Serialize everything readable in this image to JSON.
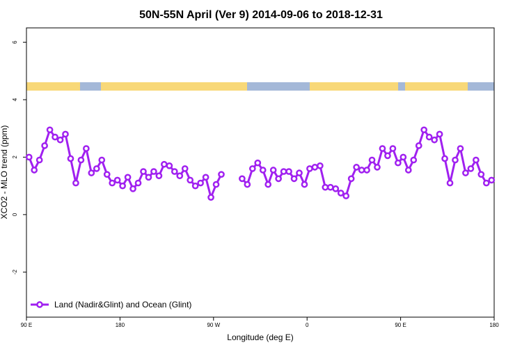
{
  "chart_data": {
    "type": "line",
    "title": "50N-55N April (Ver 9)   2014-09-06 to 2018-12-31",
    "x_label": "Longitude (deg E)",
    "y_label": "XCO2 - MLO trend (ppm)",
    "x": [
      92.5,
      97.5,
      102.5,
      107.5,
      112.5,
      117.5,
      122.5,
      127.5,
      132.5,
      137.5,
      142.5,
      147.5,
      152.5,
      157.5,
      162.5,
      167.5,
      172.5,
      177.5,
      182.5,
      187.5,
      192.5,
      197.5,
      202.5,
      207.5,
      212.5,
      217.5,
      222.5,
      227.5,
      232.5,
      237.5,
      242.5,
      247.5,
      252.5,
      257.5,
      262.5,
      267.5,
      272.5,
      277.5,
      282.5,
      287.5,
      292.5,
      297.5,
      302.5,
      307.5,
      312.5,
      317.5,
      322.5,
      327.5,
      332.5,
      337.5,
      342.5,
      347.5,
      352.5,
      357.5,
      362.5,
      367.5,
      372.5,
      377.5,
      382.5,
      387.5,
      392.5,
      397.5,
      402.5,
      407.5,
      412.5,
      417.5,
      422.5,
      427.5,
      432.5,
      437.5,
      442.5,
      447.5,
      452.5,
      457.5,
      462.5,
      467.5,
      472.5,
      477.5,
      482.5,
      487.5,
      492.5,
      497.5,
      502.5,
      507.5,
      512.5,
      517.5,
      522.5,
      527.5,
      532.5,
      537.5
    ],
    "series": [
      {
        "name": "Land (Nadir&Glint) and Ocean (Glint)",
        "color": "#a020f0",
        "values": [
          2.0,
          1.55,
          1.9,
          2.4,
          2.95,
          2.7,
          2.6,
          2.8,
          1.95,
          1.1,
          1.9,
          2.3,
          1.45,
          1.6,
          1.9,
          1.4,
          1.1,
          1.2,
          1.0,
          1.3,
          0.9,
          1.1,
          1.5,
          1.3,
          1.5,
          1.35,
          1.75,
          1.7,
          1.5,
          1.35,
          1.6,
          1.2,
          1.0,
          1.1,
          1.3,
          0.6,
          1.05,
          1.4,
          null,
          null,
          null,
          1.25,
          1.05,
          1.6,
          1.8,
          1.55,
          1.05,
          1.55,
          1.25,
          1.5,
          1.5,
          1.25,
          1.45,
          1.05,
          1.6,
          1.65,
          1.7,
          0.95,
          0.95,
          0.9,
          0.75,
          0.65,
          1.25,
          1.65,
          1.55,
          1.55,
          1.9,
          1.65,
          2.3,
          2.05,
          2.3,
          1.8,
          2.0,
          1.55,
          1.9,
          2.4,
          2.95,
          2.7,
          2.6,
          2.8,
          1.95,
          1.1,
          1.9,
          2.3,
          1.45,
          1.6,
          1.9,
          1.4,
          1.1,
          1.2
        ]
      }
    ],
    "xlim": [
      90,
      540
    ],
    "xticks": [
      {
        "value": 90,
        "label": "90 E"
      },
      180,
      {
        "value": 270,
        "label": "90 W"
      },
      {
        "value": 360,
        "label": "0"
      },
      {
        "value": 450,
        "label": "90 E"
      },
      {
        "value": 540,
        "label": "180"
      }
    ],
    "ylim": [
      -3.57,
      6.5
    ],
    "yticks": [
      -2,
      0,
      2,
      4,
      6
    ],
    "legend": "bottom-left"
  }
}
